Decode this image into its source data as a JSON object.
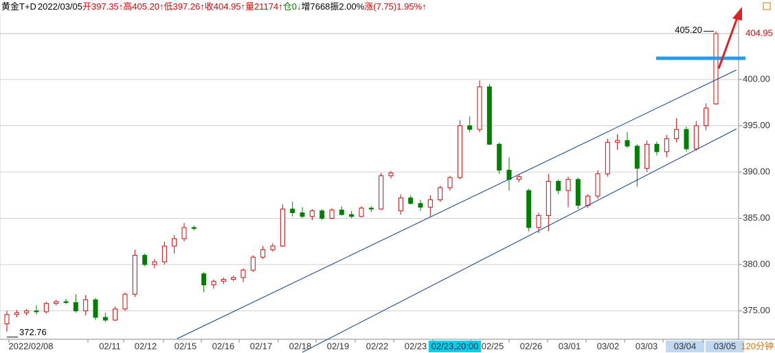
{
  "chart_data": {
    "type": "candlestick",
    "header": [
      {
        "text": "黄金T+D",
        "color": "#000000"
      },
      {
        "text": "2022/03/05",
        "color": "#000000"
      },
      {
        "text": "开397.35↑",
        "color": "#e00000"
      },
      {
        "text": "高405.20↑",
        "color": "#e00000"
      },
      {
        "text": "低397.26↑",
        "color": "#e00000"
      },
      {
        "text": "收404.95↑",
        "color": "#e00000"
      },
      {
        "text": "量21174↑",
        "color": "#e00000"
      },
      {
        "text": "仓0↓",
        "color": "#008000"
      },
      {
        "text": "增7668",
        "color": "#000000"
      },
      {
        "text": "振2.00%",
        "color": "#000000"
      },
      {
        "text": "涨(7.75)1.95%↑",
        "color": "#e00000"
      }
    ],
    "categories": [
      "2022/02/08",
      "02/11",
      "02/12",
      "02/15",
      "02/16",
      "02/17",
      "02/18",
      "02/19",
      "02/22",
      "02/23",
      "02/23,20:00",
      "02/25",
      "02/26",
      "03/01",
      "03/02",
      "03/03",
      "03/04",
      "03/05"
    ],
    "period": "120分钟",
    "open": [
      373.6,
      374.6,
      374.8,
      375.0,
      374.9,
      375.8,
      376.0,
      375.9,
      375.0,
      376.2,
      374.3,
      374.0,
      375.2,
      376.8,
      381.0,
      380.0,
      380.3,
      382.0,
      382.8,
      384.0,
      379.0,
      377.8,
      378.2,
      378.4,
      378.6,
      379.4,
      380.8,
      381.6,
      382.0,
      386.0,
      385.6,
      385.2,
      385.8,
      385.0,
      385.9,
      385.4,
      385.2,
      386.1,
      386.0,
      389.6,
      385.8,
      387.2,
      386.6,
      386.2,
      387.0,
      388.3,
      389.4,
      395.0,
      394.6,
      399.2,
      393.0,
      390.2,
      389.2,
      388.0,
      384.0,
      385.3,
      389.0,
      388.0,
      389.2,
      386.4,
      387.4,
      389.8,
      393.2,
      393.4,
      392.8,
      390.4,
      393.0,
      392.2,
      393.6,
      394.6,
      392.5,
      395.0,
      397.35
    ],
    "high": [
      375.0,
      375.1,
      375.2,
      375.6,
      376.0,
      376.2,
      376.3,
      376.8,
      376.7,
      376.4,
      374.8,
      375.5,
      377.0,
      381.6,
      381.2,
      380.6,
      382.5,
      383.2,
      384.5,
      384.2,
      379.2,
      378.4,
      378.6,
      378.8,
      379.6,
      381.0,
      382.0,
      382.3,
      386.5,
      386.8,
      386.2,
      386.0,
      386.0,
      386.1,
      386.3,
      385.8,
      386.3,
      386.3,
      389.9,
      390.1,
      387.6,
      387.5,
      387.0,
      387.5,
      388.5,
      389.6,
      395.6,
      396.0,
      399.9,
      399.5,
      393.2,
      391.6,
      389.8,
      388.2,
      385.6,
      389.8,
      389.2,
      389.5,
      389.4,
      387.6,
      390.2,
      393.6,
      394.1,
      394.3,
      393.0,
      393.4,
      393.3,
      394.0,
      395.8,
      394.9,
      395.5,
      397.4,
      405.2
    ],
    "low": [
      372.76,
      374.3,
      374.5,
      374.6,
      374.7,
      375.6,
      375.7,
      374.8,
      374.5,
      374.0,
      373.8,
      373.9,
      375.0,
      376.5,
      379.8,
      379.6,
      380.0,
      381.2,
      382.5,
      383.7,
      377.0,
      377.4,
      377.9,
      378.2,
      378.1,
      379.2,
      380.6,
      381.4,
      381.9,
      385.2,
      385.0,
      384.8,
      384.8,
      384.9,
      385.3,
      385.0,
      385.1,
      385.7,
      385.9,
      389.3,
      385.4,
      386.5,
      385.8,
      385.2,
      386.8,
      388.0,
      389.2,
      394.3,
      394.3,
      392.9,
      389.8,
      388.0,
      388.9,
      383.6,
      383.4,
      383.6,
      387.6,
      386.2,
      386.0,
      386.1,
      387.1,
      389.5,
      392.4,
      392.6,
      388.4,
      390.0,
      391.8,
      391.6,
      393.2,
      392.2,
      392.3,
      394.5,
      397.26
    ],
    "close": [
      374.6,
      374.8,
      375.0,
      374.9,
      375.8,
      376.0,
      375.9,
      375.0,
      376.2,
      374.3,
      374.0,
      375.2,
      376.8,
      381.0,
      380.0,
      380.3,
      382.0,
      382.8,
      384.0,
      383.9,
      377.8,
      378.2,
      378.4,
      378.6,
      379.4,
      380.8,
      381.6,
      382.0,
      386.0,
      385.6,
      385.2,
      385.8,
      385.0,
      385.9,
      385.4,
      385.2,
      386.1,
      386.0,
      389.6,
      389.9,
      387.2,
      386.6,
      386.2,
      387.0,
      388.3,
      389.4,
      395.0,
      394.6,
      399.2,
      393.0,
      390.2,
      389.2,
      389.5,
      384.0,
      385.3,
      389.0,
      388.0,
      389.2,
      386.4,
      387.4,
      389.8,
      393.2,
      393.4,
      392.8,
      390.4,
      393.0,
      392.2,
      393.6,
      394.6,
      392.5,
      395.0,
      396.9,
      404.95
    ],
    "high_label": "405.20",
    "low_label": "372.76",
    "last_label": "404.95",
    "up_color": "#e00000",
    "down_color": "#008000",
    "ylim": [
      372.3,
      407.1
    ],
    "yticks": [
      {
        "value": 375,
        "label": "375.00"
      },
      {
        "value": 380,
        "label": "380.00"
      },
      {
        "value": 385,
        "label": "385.00"
      },
      {
        "value": 390,
        "label": "390.00"
      },
      {
        "value": 395,
        "label": "395.00"
      },
      {
        "value": 400,
        "label": "400.00"
      }
    ],
    "grid": true
  }
}
